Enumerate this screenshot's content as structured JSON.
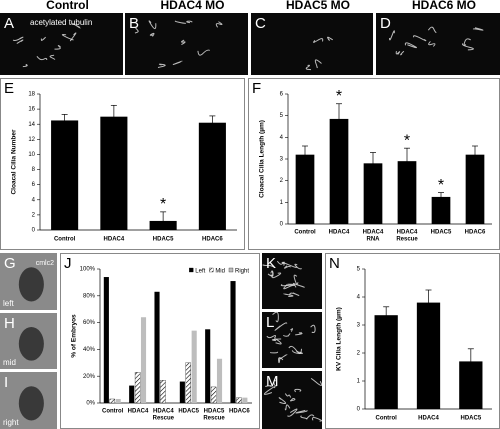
{
  "images": [
    {
      "label": "A",
      "title": "Control",
      "caption": "acetylated tubulin"
    },
    {
      "label": "B",
      "title": "HDAC4 MO"
    },
    {
      "label": "C",
      "title": "HDAC5 MO"
    },
    {
      "label": "D",
      "title": "HDAC6 MO"
    },
    {
      "label": "G",
      "caption": "cmlc2",
      "side": "left"
    },
    {
      "label": "H",
      "side": "mid"
    },
    {
      "label": "I",
      "side": "right"
    },
    {
      "label": "K"
    },
    {
      "label": "L"
    },
    {
      "label": "M"
    }
  ],
  "chart_data": [
    {
      "type": "bar",
      "panel_label": "E",
      "y_label": "Cloacal Cilia Number",
      "categories": [
        "Control",
        "HDAC4",
        "HDAC5",
        "HDAC6"
      ],
      "values": [
        14.5,
        15,
        1.2,
        14.2
      ],
      "errors": [
        0.8,
        1.5,
        1.2,
        0.9
      ],
      "significant": [
        false,
        false,
        true,
        false
      ],
      "significance_marker": "*",
      "color": "#000000",
      "ylim": [
        0,
        18
      ],
      "yticks": [
        0,
        2,
        4,
        6,
        8,
        10,
        12,
        14,
        16,
        18
      ]
    },
    {
      "type": "bar",
      "panel_label": "F",
      "y_label": "Cloacal Cilia Length (µm)",
      "categories": [
        [
          "Control"
        ],
        [
          "HDAC4"
        ],
        [
          "HDAC4",
          "RNA"
        ],
        [
          "HDAC4",
          "Rescue"
        ],
        [
          "HDAC5"
        ],
        [
          "HDAC6"
        ]
      ],
      "values": [
        3.2,
        4.85,
        2.8,
        2.9,
        1.25,
        3.2
      ],
      "errors": [
        0.4,
        0.7,
        0.5,
        0.6,
        0.2,
        0.4
      ],
      "significant": [
        false,
        true,
        false,
        true,
        true,
        false
      ],
      "significance_marker": "*",
      "color": "#000000",
      "ylim": [
        0,
        6
      ],
      "yticks": [
        0,
        1,
        2,
        3,
        4,
        5,
        6
      ]
    },
    {
      "type": "bar",
      "panel_label": "J",
      "y_label": "% of Embryos",
      "categories": [
        [
          "Control"
        ],
        [
          "HDAC4"
        ],
        [
          "HDAC4",
          "Rescue"
        ],
        [
          "HDAC5"
        ],
        [
          "HDAC5",
          "Rescue"
        ],
        [
          "HDAC6"
        ]
      ],
      "series": [
        {
          "name": "Left",
          "color": "#000000",
          "values": [
            94,
            13,
            83,
            16,
            55,
            91
          ]
        },
        {
          "name": "Mid",
          "color": "#ffffff",
          "fill": "hatch",
          "values": [
            3,
            23,
            17,
            30,
            12,
            4
          ]
        },
        {
          "name": "Right",
          "color": "#bdbdbd",
          "values": [
            3,
            64,
            0,
            54,
            33,
            4
          ]
        }
      ],
      "legend": "upper right",
      "ylim": [
        0,
        100
      ],
      "yticks": [
        {
          "value": 0,
          "label": "0%"
        },
        {
          "value": 20,
          "label": "20%"
        },
        {
          "value": 40,
          "label": "40%"
        },
        {
          "value": 60,
          "label": "60%"
        },
        {
          "value": 80,
          "label": "80%"
        },
        {
          "value": 100,
          "label": "100%"
        }
      ]
    },
    {
      "type": "bar",
      "panel_label": "N",
      "y_label": "KV Cilia Length (µm)",
      "categories": [
        "Control",
        "HDAC4",
        "HDAC5"
      ],
      "values": [
        3.35,
        3.8,
        1.7
      ],
      "errors": [
        0.3,
        0.45,
        0.45
      ],
      "color": "#000000",
      "ylim": [
        0,
        5
      ],
      "yticks": [
        0,
        1,
        2,
        3,
        4,
        5
      ]
    }
  ]
}
